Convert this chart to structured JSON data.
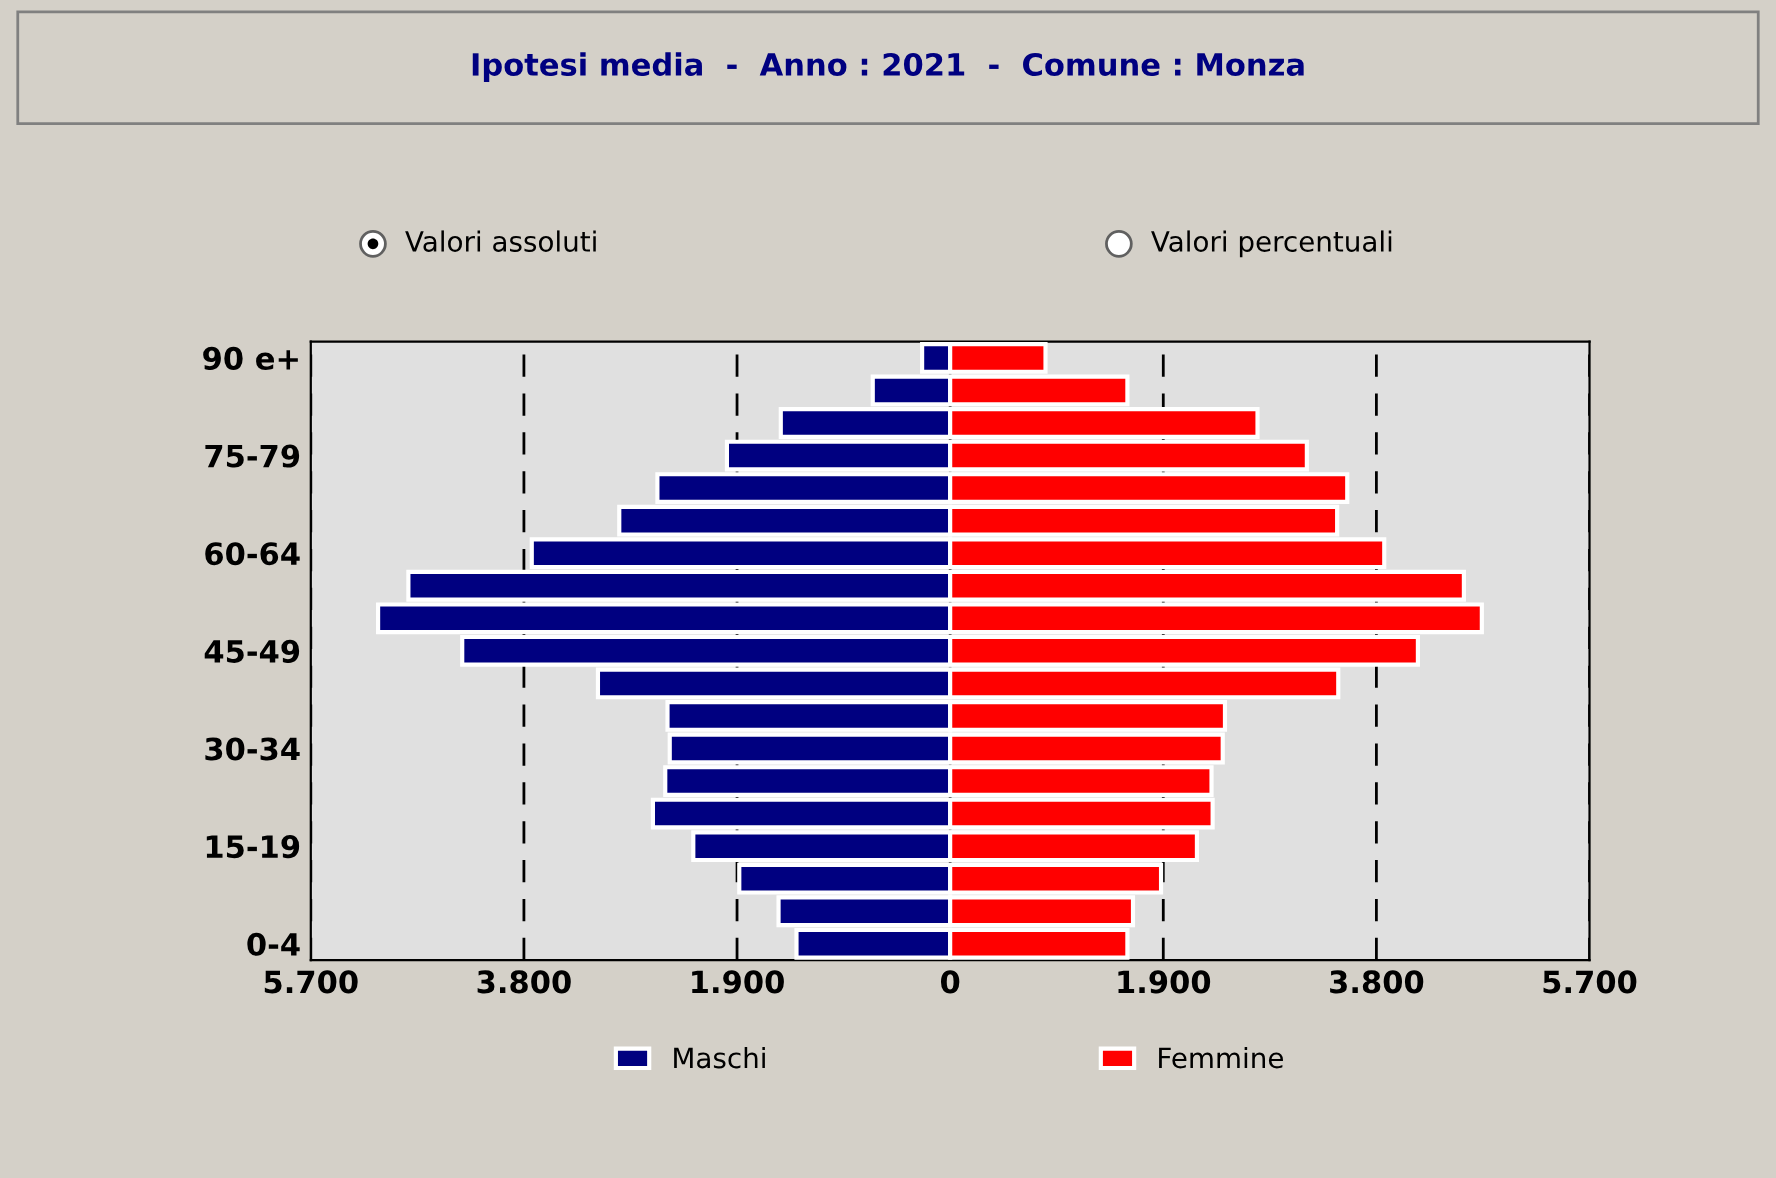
{
  "chart_data": {
    "type": "bar",
    "orientation": "horizontal",
    "title": "Ipotesi media  -  Anno : 2021  -  Comune : Monza",
    "categories": [
      "90 e+",
      null,
      null,
      "75-79",
      null,
      null,
      "60-64",
      null,
      null,
      "45-49",
      null,
      null,
      "30-34",
      null,
      null,
      "15-19",
      null,
      null,
      "0-4"
    ],
    "series": [
      {
        "name": "Maschi",
        "color": "#000080",
        "values": [
          -250,
          -690,
          -1510,
          -1990,
          -2610,
          -2950,
          -3730,
          -4830,
          -5100,
          -4350,
          -3140,
          -2520,
          -2500,
          -2540,
          -2650,
          -2290,
          -1880,
          -1530,
          -1370
        ]
      },
      {
        "name": "Femmine",
        "color": "#ff0000",
        "values": [
          850,
          1580,
          2740,
          3180,
          3540,
          3450,
          3870,
          4580,
          4740,
          4170,
          3460,
          2450,
          2430,
          2330,
          2340,
          2200,
          1880,
          1630,
          1580
        ]
      }
    ],
    "xlim": [
      -5700,
      5700
    ],
    "xticks": [
      {
        "value": -5700,
        "label": "5.700"
      },
      {
        "value": -3800,
        "label": "3.800"
      },
      {
        "value": -1900,
        "label": "1.900"
      },
      0,
      {
        "value": 1900,
        "label": "1.900"
      },
      {
        "value": 3800,
        "label": "3.800"
      },
      {
        "value": 5700,
        "label": "5.700"
      }
    ],
    "stacked": true,
    "grid": "x",
    "line_style": "dashed",
    "legend": "bottom",
    "annotations": [
      "Valori assoluti",
      "Valori percentuali"
    ]
  }
}
